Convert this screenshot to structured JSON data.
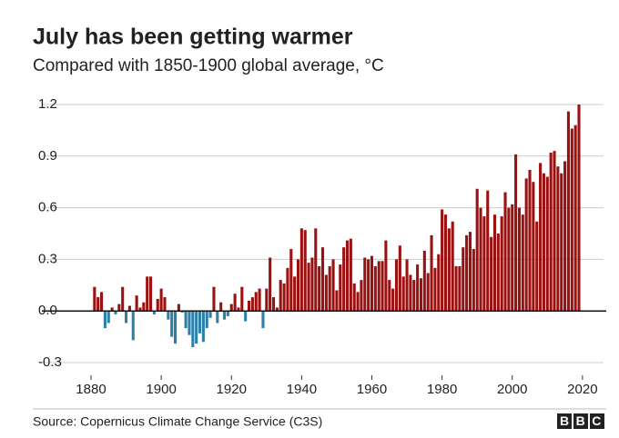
{
  "chart_data": {
    "type": "bar",
    "title": "July has been getting warmer",
    "subtitle": "Compared with 1850-1900 global average, °C",
    "source": "Source: Copernicus Climate Change Service (C3S)",
    "logo": "BBC",
    "color": "#9b1111",
    "negative_color": "#2b7fa8",
    "grid": true,
    "xlim": [
      1866,
      2026
    ],
    "xticks": [
      1880,
      1900,
      1920,
      1940,
      1960,
      1980,
      2000,
      2020
    ],
    "ylim": [
      -0.3,
      1.2
    ],
    "yticks": [
      -0.3,
      {
        "value": 0,
        "label": "0.0"
      },
      0.3,
      0.6,
      0.9,
      1.2
    ],
    "x": [
      1881,
      1882,
      1883,
      1884,
      1885,
      1886,
      1887,
      1888,
      1889,
      1890,
      1891,
      1892,
      1893,
      1894,
      1895,
      1896,
      1897,
      1898,
      1899,
      1900,
      1901,
      1902,
      1903,
      1904,
      1905,
      1906,
      1907,
      1908,
      1909,
      1910,
      1911,
      1912,
      1913,
      1914,
      1915,
      1916,
      1917,
      1918,
      1919,
      1920,
      1921,
      1922,
      1923,
      1924,
      1925,
      1926,
      1927,
      1928,
      1929,
      1930,
      1931,
      1932,
      1933,
      1934,
      1935,
      1936,
      1937,
      1938,
      1939,
      1940,
      1941,
      1942,
      1943,
      1944,
      1945,
      1946,
      1947,
      1948,
      1949,
      1950,
      1951,
      1952,
      1953,
      1954,
      1955,
      1956,
      1957,
      1958,
      1959,
      1960,
      1961,
      1962,
      1963,
      1964,
      1965,
      1966,
      1967,
      1968,
      1969,
      1970,
      1971,
      1972,
      1973,
      1974,
      1975,
      1976,
      1977,
      1978,
      1979,
      1980,
      1981,
      1982,
      1983,
      1984,
      1985,
      1986,
      1987,
      1988,
      1989,
      1990,
      1991,
      1992,
      1993,
      1994,
      1995,
      1996,
      1997,
      1998,
      1999,
      2000,
      2001,
      2002,
      2003,
      2004,
      2005,
      2006,
      2007,
      2008,
      2009,
      2010,
      2011,
      2012,
      2013,
      2014,
      2015,
      2016,
      2017,
      2018,
      2019
    ],
    "values": [
      0.14,
      0.08,
      0.11,
      -0.1,
      -0.07,
      0.02,
      -0.02,
      0.04,
      0.14,
      -0.07,
      0.03,
      -0.17,
      0.09,
      0.02,
      0.05,
      0.2,
      0.2,
      -0.02,
      0.07,
      0.13,
      0.08,
      -0.05,
      -0.15,
      -0.19,
      0.04,
      -0.01,
      -0.1,
      -0.14,
      -0.21,
      -0.19,
      -0.13,
      -0.18,
      -0.1,
      -0.04,
      0.14,
      -0.07,
      0.05,
      -0.05,
      -0.03,
      0.04,
      0.1,
      0.02,
      0.14,
      -0.06,
      0.06,
      0.08,
      0.11,
      0.13,
      -0.1,
      0.13,
      0.31,
      0.08,
      0.02,
      0.18,
      0.16,
      0.25,
      0.36,
      0.2,
      0.3,
      0.48,
      0.47,
      0.28,
      0.31,
      0.48,
      0.26,
      0.37,
      0.21,
      0.26,
      0.3,
      0.12,
      0.27,
      0.37,
      0.41,
      0.42,
      0.16,
      0.11,
      0.18,
      0.31,
      0.3,
      0.32,
      0.26,
      0.29,
      0.29,
      0.41,
      0.18,
      0.13,
      0.3,
      0.38,
      0.2,
      0.3,
      0.21,
      0.18,
      0.27,
      0.19,
      0.35,
      0.22,
      0.44,
      0.25,
      0.33,
      0.59,
      0.56,
      0.48,
      0.52,
      0.26,
      0.26,
      0.37,
      0.44,
      0.46,
      0.36,
      0.71,
      0.6,
      0.55,
      0.7,
      0.43,
      0.56,
      0.45,
      0.55,
      0.69,
      0.6,
      0.62,
      0.91,
      0.6,
      0.56,
      0.77,
      0.82,
      0.75,
      0.52,
      0.86,
      0.8,
      0.78,
      0.92,
      0.93,
      0.84,
      0.8,
      0.87,
      1.16,
      1.06,
      1.08,
      1.2
    ]
  }
}
